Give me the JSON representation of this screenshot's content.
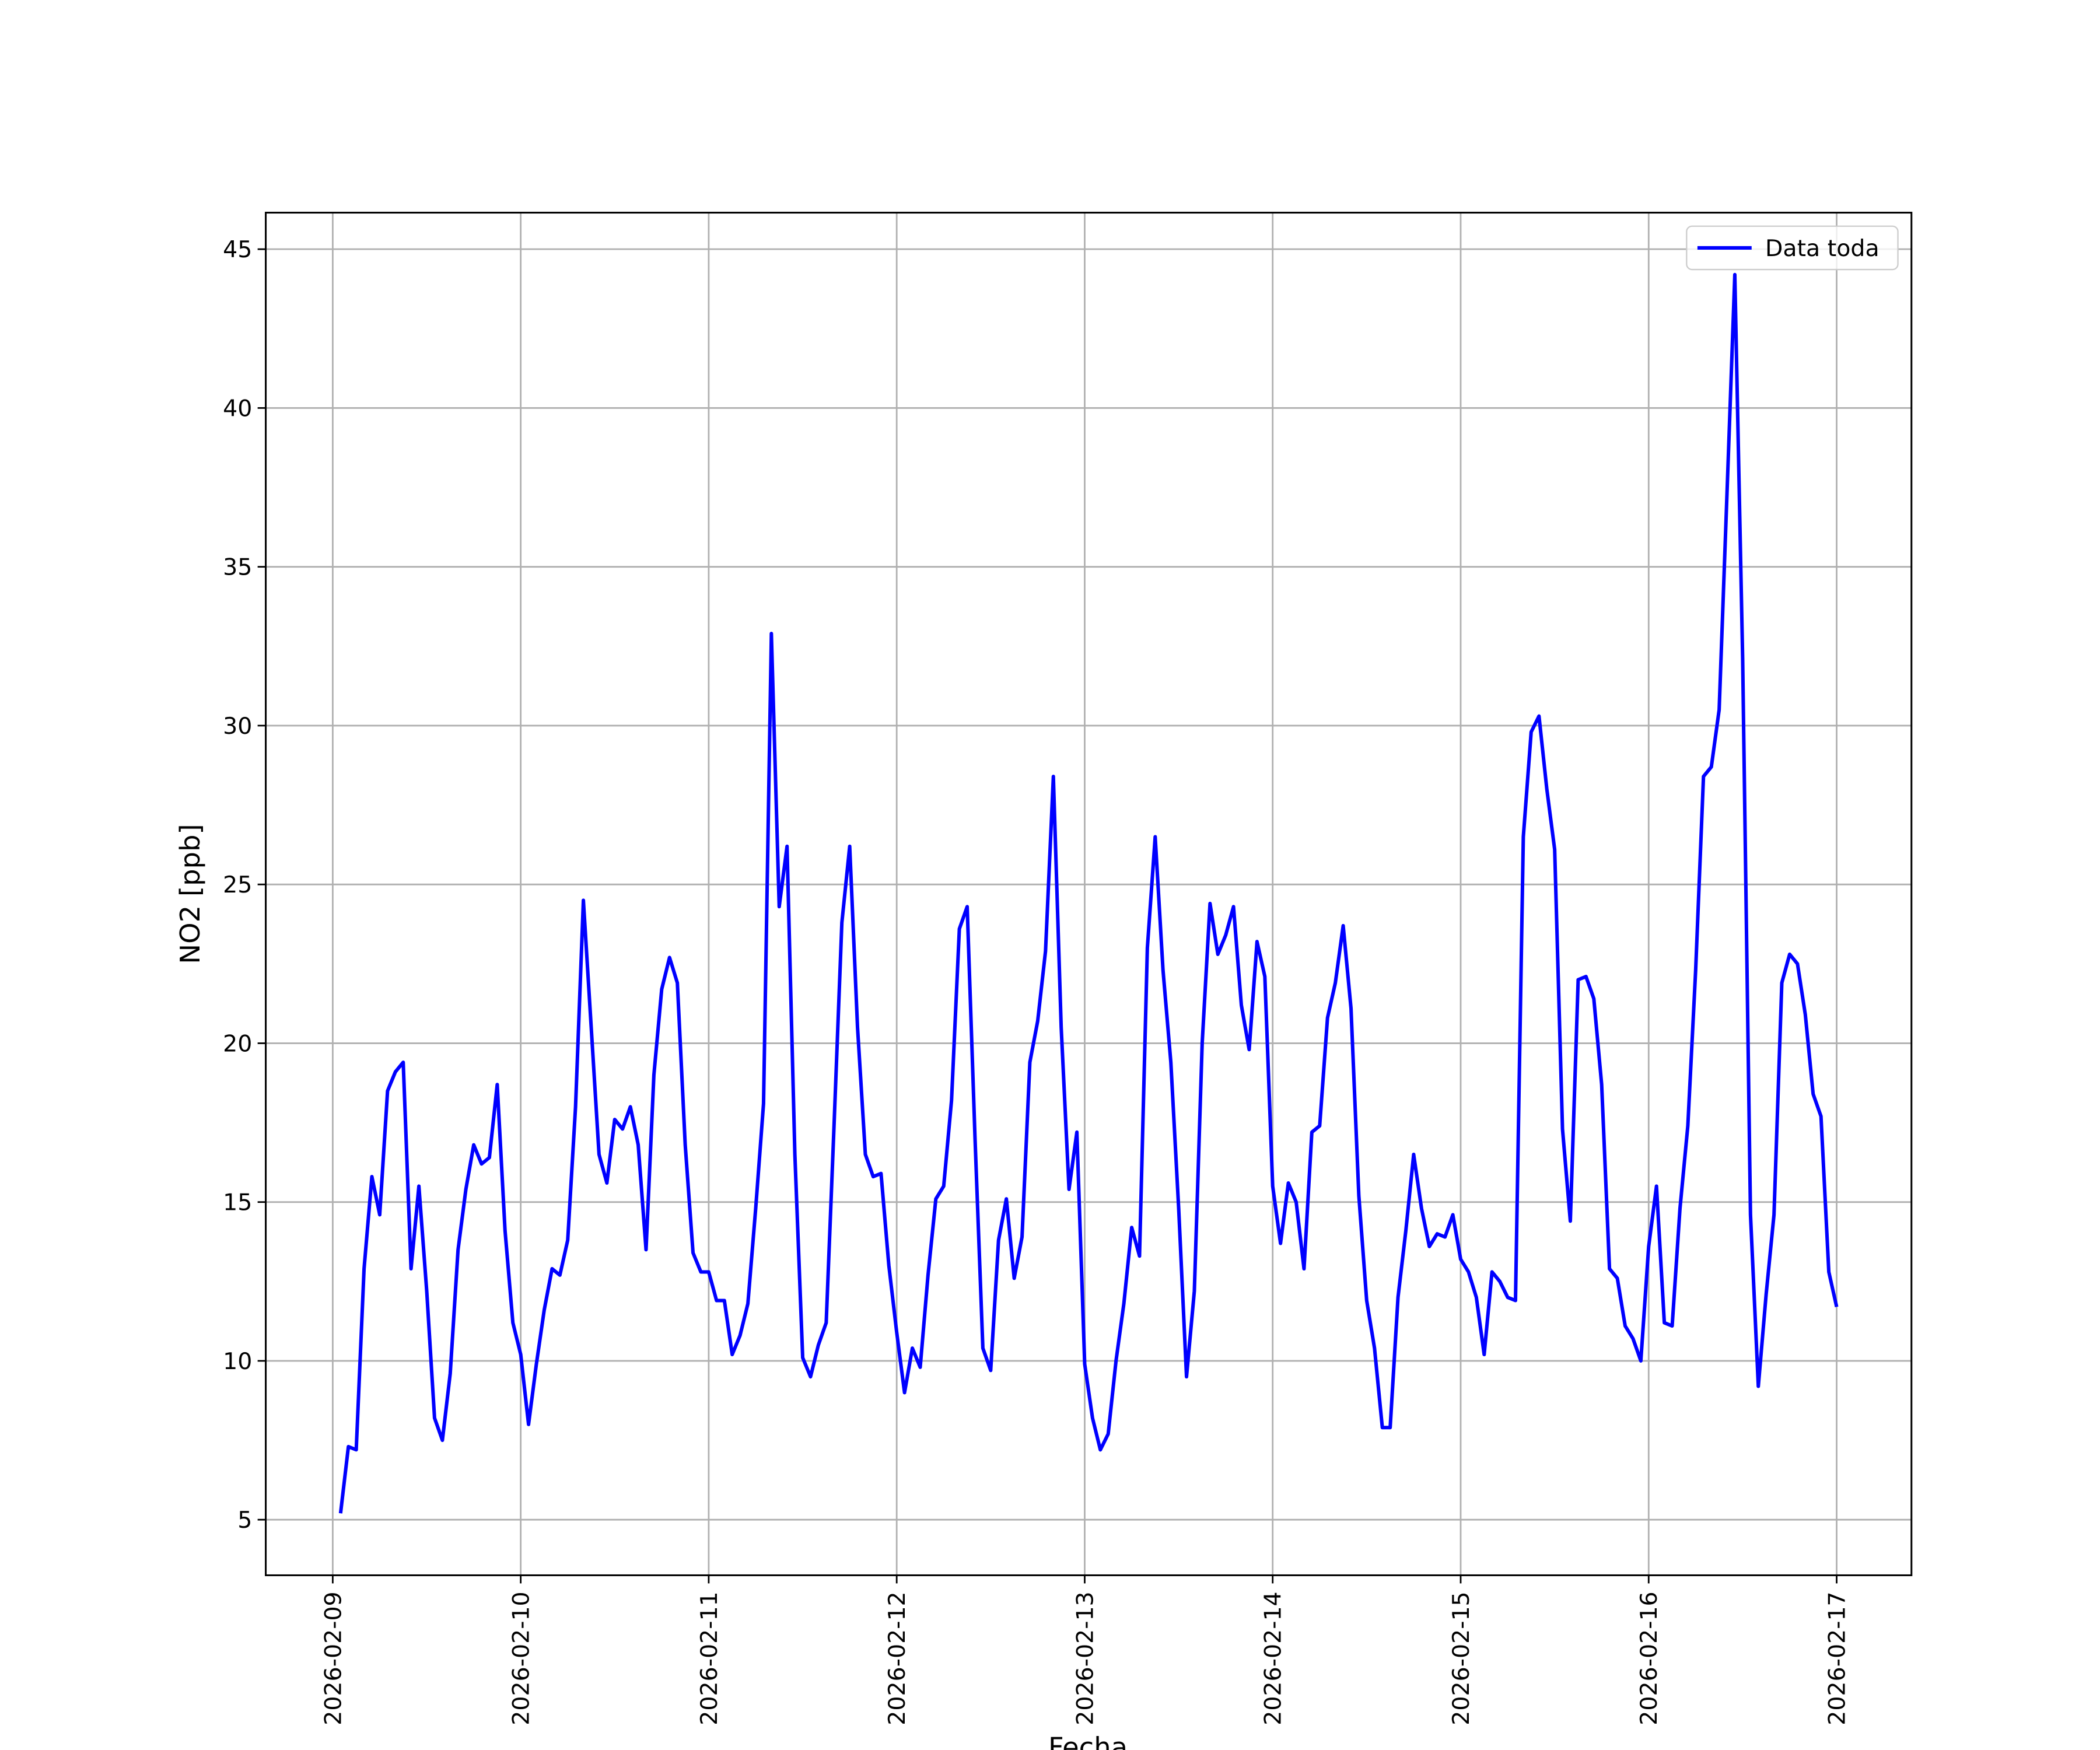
{
  "chart_data": {
    "type": "line",
    "xlabel": "Fecha",
    "ylabel": "NO2 [ppb]",
    "x": [
      "2026-02-09 01:00",
      "2026-02-09 02:00",
      "2026-02-09 03:00",
      "2026-02-09 04:00",
      "2026-02-09 05:00",
      "2026-02-09 06:00",
      "2026-02-09 07:00",
      "2026-02-09 08:00",
      "2026-02-09 09:00",
      "2026-02-09 10:00",
      "2026-02-09 11:00",
      "2026-02-09 12:00",
      "2026-02-09 13:00",
      "2026-02-09 14:00",
      "2026-02-09 15:00",
      "2026-02-09 16:00",
      "2026-02-09 17:00",
      "2026-02-09 18:00",
      "2026-02-09 19:00",
      "2026-02-09 20:00",
      "2026-02-09 21:00",
      "2026-02-09 22:00",
      "2026-02-09 23:00",
      "2026-02-10 00:00",
      "2026-02-10 01:00",
      "2026-02-10 02:00",
      "2026-02-10 03:00",
      "2026-02-10 04:00",
      "2026-02-10 05:00",
      "2026-02-10 06:00",
      "2026-02-10 07:00",
      "2026-02-10 08:00",
      "2026-02-10 09:00",
      "2026-02-10 10:00",
      "2026-02-10 11:00",
      "2026-02-10 12:00",
      "2026-02-10 13:00",
      "2026-02-10 14:00",
      "2026-02-10 15:00",
      "2026-02-10 16:00",
      "2026-02-10 17:00",
      "2026-02-10 18:00",
      "2026-02-10 19:00",
      "2026-02-10 20:00",
      "2026-02-10 21:00",
      "2026-02-10 22:00",
      "2026-02-10 23:00",
      "2026-02-11 00:00",
      "2026-02-11 01:00",
      "2026-02-11 02:00",
      "2026-02-11 03:00",
      "2026-02-11 04:00",
      "2026-02-11 05:00",
      "2026-02-11 06:00",
      "2026-02-11 07:00",
      "2026-02-11 08:00",
      "2026-02-11 09:00",
      "2026-02-11 10:00",
      "2026-02-11 11:00",
      "2026-02-11 12:00",
      "2026-02-11 13:00",
      "2026-02-11 14:00",
      "2026-02-11 15:00",
      "2026-02-11 16:00",
      "2026-02-11 17:00",
      "2026-02-11 18:00",
      "2026-02-11 19:00",
      "2026-02-11 20:00",
      "2026-02-11 21:00",
      "2026-02-11 22:00",
      "2026-02-11 23:00",
      "2026-02-12 00:00",
      "2026-02-12 01:00",
      "2026-02-12 02:00",
      "2026-02-12 03:00",
      "2026-02-12 04:00",
      "2026-02-12 05:00",
      "2026-02-12 06:00",
      "2026-02-12 07:00",
      "2026-02-12 08:00",
      "2026-02-12 09:00",
      "2026-02-12 10:00",
      "2026-02-12 11:00",
      "2026-02-12 12:00",
      "2026-02-12 13:00",
      "2026-02-12 14:00",
      "2026-02-12 15:00",
      "2026-02-12 16:00",
      "2026-02-12 17:00",
      "2026-02-12 18:00",
      "2026-02-12 19:00",
      "2026-02-12 20:00",
      "2026-02-12 21:00",
      "2026-02-12 22:00",
      "2026-02-12 23:00",
      "2026-02-13 00:00",
      "2026-02-13 01:00",
      "2026-02-13 02:00",
      "2026-02-13 03:00",
      "2026-02-13 04:00",
      "2026-02-13 05:00",
      "2026-02-13 06:00",
      "2026-02-13 07:00",
      "2026-02-13 08:00",
      "2026-02-13 09:00",
      "2026-02-13 10:00",
      "2026-02-13 11:00",
      "2026-02-13 12:00",
      "2026-02-13 13:00",
      "2026-02-13 14:00",
      "2026-02-13 15:00",
      "2026-02-13 16:00",
      "2026-02-13 17:00",
      "2026-02-13 18:00",
      "2026-02-13 19:00",
      "2026-02-13 20:00",
      "2026-02-13 21:00",
      "2026-02-13 22:00",
      "2026-02-13 23:00",
      "2026-02-14 00:00",
      "2026-02-14 01:00",
      "2026-02-14 02:00",
      "2026-02-14 03:00",
      "2026-02-14 04:00",
      "2026-02-14 05:00",
      "2026-02-14 06:00",
      "2026-02-14 07:00",
      "2026-02-14 08:00",
      "2026-02-14 09:00",
      "2026-02-14 10:00",
      "2026-02-14 11:00",
      "2026-02-14 12:00",
      "2026-02-14 13:00",
      "2026-02-14 14:00",
      "2026-02-14 15:00",
      "2026-02-14 16:00",
      "2026-02-14 17:00",
      "2026-02-14 18:00",
      "2026-02-14 19:00",
      "2026-02-14 20:00",
      "2026-02-14 21:00",
      "2026-02-14 22:00",
      "2026-02-14 23:00",
      "2026-02-15 00:00",
      "2026-02-15 01:00",
      "2026-02-15 02:00",
      "2026-02-15 03:00",
      "2026-02-15 04:00",
      "2026-02-15 05:00",
      "2026-02-15 06:00",
      "2026-02-15 07:00",
      "2026-02-15 08:00",
      "2026-02-15 09:00",
      "2026-02-15 10:00",
      "2026-02-15 11:00",
      "2026-02-15 12:00",
      "2026-02-15 13:00",
      "2026-02-15 14:00",
      "2026-02-15 15:00",
      "2026-02-15 16:00",
      "2026-02-15 17:00",
      "2026-02-15 18:00",
      "2026-02-15 19:00",
      "2026-02-15 20:00",
      "2026-02-15 21:00",
      "2026-02-15 22:00",
      "2026-02-15 23:00",
      "2026-02-16 00:00",
      "2026-02-16 01:00",
      "2026-02-16 02:00",
      "2026-02-16 03:00",
      "2026-02-16 04:00",
      "2026-02-16 05:00",
      "2026-02-16 06:00",
      "2026-02-16 07:00",
      "2026-02-16 08:00",
      "2026-02-16 09:00",
      "2026-02-16 10:00",
      "2026-02-16 11:00",
      "2026-02-16 12:00",
      "2026-02-16 13:00",
      "2026-02-16 14:00",
      "2026-02-16 15:00",
      "2026-02-16 16:00",
      "2026-02-16 17:00",
      "2026-02-16 18:00",
      "2026-02-16 19:00",
      "2026-02-16 20:00",
      "2026-02-16 21:00",
      "2026-02-16 22:00",
      "2026-02-16 23:00",
      "2026-02-17 00:00"
    ],
    "series": [
      {
        "name": "Data toda",
        "color": "#0000ff",
        "values": [
          5.2,
          7.3,
          7.2,
          12.9,
          15.8,
          14.6,
          18.5,
          19.1,
          19.4,
          12.9,
          15.5,
          12.2,
          8.2,
          7.5,
          9.6,
          13.5,
          15.4,
          16.8,
          16.2,
          16.4,
          18.7,
          14.1,
          11.2,
          10.2,
          8.0,
          9.9,
          11.6,
          12.9,
          12.7,
          13.8,
          18.0,
          24.5,
          20.5,
          16.5,
          15.6,
          17.6,
          17.3,
          18.0,
          16.8,
          13.5,
          19.0,
          21.7,
          22.7,
          21.9,
          16.8,
          13.4,
          12.8,
          12.8,
          11.9,
          11.9,
          10.2,
          10.8,
          11.8,
          14.8,
          18.1,
          32.9,
          24.3,
          26.2,
          16.5,
          10.1,
          9.5,
          10.5,
          11.2,
          17.4,
          23.8,
          26.2,
          20.5,
          16.5,
          15.8,
          15.9,
          13.0,
          10.9,
          9.0,
          10.4,
          9.8,
          12.7,
          15.1,
          15.5,
          18.2,
          23.6,
          24.3,
          17.0,
          10.4,
          9.7,
          13.8,
          15.1,
          12.6,
          13.9,
          19.4,
          20.7,
          22.9,
          28.4,
          20.5,
          15.4,
          17.2,
          9.9,
          8.2,
          7.2,
          7.7,
          10.0,
          11.8,
          14.2,
          13.3,
          23.0,
          26.5,
          22.3,
          19.4,
          14.8,
          9.5,
          12.2,
          20.0,
          24.4,
          22.8,
          23.4,
          24.3,
          21.2,
          19.8,
          23.2,
          22.1,
          15.5,
          13.7,
          15.6,
          15.0,
          12.9,
          17.2,
          17.4,
          20.8,
          21.9,
          23.7,
          21.1,
          15.2,
          11.9,
          10.4,
          7.9,
          7.9,
          12.0,
          14.1,
          16.5,
          14.8,
          13.6,
          14.0,
          13.9,
          14.6,
          13.2,
          12.8,
          12.0,
          10.2,
          12.8,
          12.5,
          12.0,
          11.9,
          26.5,
          29.8,
          30.3,
          28.0,
          26.1,
          17.3,
          14.4,
          22.0,
          22.1,
          21.4,
          18.7,
          12.9,
          12.6,
          11.1,
          10.7,
          10.0,
          13.6,
          15.5,
          11.2,
          11.1,
          14.8,
          17.4,
          22.3,
          28.4,
          28.7,
          30.5,
          37.3,
          44.2,
          32.1,
          14.6,
          9.2,
          12.1,
          14.6,
          21.9,
          22.8,
          22.5,
          20.9,
          18.4,
          17.7,
          12.8,
          11.7
        ]
      }
    ],
    "xlim": [
      "2026-02-08 15:27",
      "2026-02-17 09:33"
    ],
    "xticks": [
      "2026-02-09",
      "2026-02-10",
      "2026-02-11",
      "2026-02-12",
      "2026-02-13",
      "2026-02-14",
      "2026-02-15",
      "2026-02-16",
      "2026-02-17"
    ],
    "ylim": [
      3.25,
      46.15
    ],
    "yticks": [
      5,
      10,
      15,
      20,
      25,
      30,
      35,
      40,
      45
    ],
    "grid": true,
    "legend": "upper right"
  }
}
